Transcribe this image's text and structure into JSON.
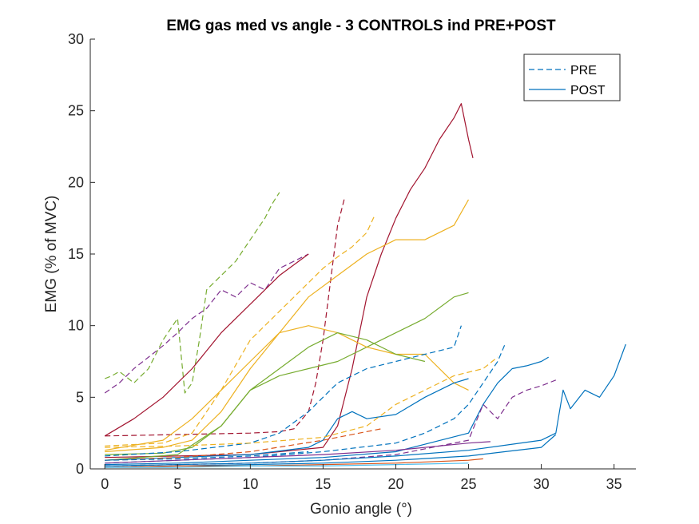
{
  "chart_data": {
    "type": "line",
    "title": "EMG gas med vs angle - 3 CONTROLS ind PRE+POST",
    "xlabel": "Gonio angle (°)",
    "ylabel": "EMG (% of MVC)",
    "xlim": [
      -1,
      36.5
    ],
    "ylim": [
      0,
      30
    ],
    "xticks": [
      "0",
      "5",
      "10",
      "15",
      "20",
      "25",
      "30",
      "35"
    ],
    "yticks": [
      "0",
      "5",
      "10",
      "15",
      "20",
      "25",
      "30"
    ],
    "grid": false,
    "legend": {
      "placement": "top-right",
      "entries": [
        {
          "label": "PRE",
          "style": "dashed",
          "color": "#0072BD"
        },
        {
          "label": "POST",
          "style": "solid",
          "color": "#0072BD"
        }
      ]
    },
    "series": [
      {
        "color": "#77AC30",
        "style": "dashed",
        "x": [
          0,
          0.5,
          1,
          1.5,
          2,
          3,
          4,
          5,
          5.5,
          6,
          6.5,
          7,
          8,
          9,
          10,
          11,
          11.5,
          12
        ],
        "y": [
          6.3,
          6.5,
          6.8,
          6.4,
          6.0,
          7.0,
          9.0,
          10.5,
          5.3,
          6.0,
          9.0,
          12.5,
          13.5,
          14.5,
          16.0,
          17.5,
          18.5,
          19.3
        ]
      },
      {
        "color": "#7E2F8E",
        "style": "dashed",
        "x": [
          0,
          1,
          2,
          3,
          4,
          5,
          6,
          7,
          8,
          9,
          10,
          11,
          12,
          13,
          14
        ],
        "y": [
          5.3,
          6.0,
          7.0,
          7.8,
          8.6,
          9.5,
          10.5,
          11.2,
          12.5,
          12.0,
          13.0,
          12.5,
          14.0,
          14.5,
          15.0
        ]
      },
      {
        "color": "#A2142F",
        "style": "solid",
        "x": [
          0,
          2,
          4,
          6,
          8,
          10,
          12,
          14
        ],
        "y": [
          2.3,
          3.5,
          5.0,
          7.0,
          9.5,
          11.5,
          13.5,
          15.0
        ]
      },
      {
        "color": "#A2142F",
        "style": "dashed",
        "x": [
          0,
          5,
          10,
          12,
          13,
          14,
          14.5,
          15,
          15.5,
          16,
          16.5
        ],
        "y": [
          2.3,
          2.4,
          2.5,
          2.6,
          2.8,
          4.0,
          6.0,
          9.0,
          13.0,
          17.0,
          19.0
        ]
      },
      {
        "color": "#A2142F",
        "style": "solid",
        "x": [
          0,
          5,
          10,
          15,
          16,
          17,
          18,
          19,
          20,
          21,
          22,
          23,
          24,
          24.5,
          25,
          25.3
        ],
        "y": [
          0.8,
          0.9,
          1.0,
          1.5,
          3.0,
          7.0,
          12.0,
          15.0,
          17.5,
          19.5,
          21.0,
          23.0,
          24.5,
          25.5,
          23.0,
          21.7
        ]
      },
      {
        "color": "#EDB120",
        "style": "dashed",
        "x": [
          0,
          4,
          6,
          8,
          10,
          12,
          14,
          15,
          16,
          17,
          18,
          18.5
        ],
        "y": [
          1.6,
          1.8,
          2.5,
          5.5,
          9.0,
          11.0,
          13.0,
          14.0,
          14.8,
          15.5,
          16.5,
          17.6
        ]
      },
      {
        "color": "#EDB120",
        "style": "solid",
        "x": [
          0,
          4,
          6,
          8,
          10,
          12,
          14,
          16,
          18,
          20,
          22,
          24,
          25
        ],
        "y": [
          1.2,
          1.5,
          2.0,
          4.0,
          7.0,
          9.5,
          12.0,
          13.5,
          15.0,
          16.0,
          16.0,
          17.0,
          18.8
        ]
      },
      {
        "color": "#77AC30",
        "style": "solid",
        "x": [
          0,
          4,
          6,
          8,
          10,
          12,
          14,
          16,
          18,
          20,
          22,
          24,
          25
        ],
        "y": [
          1.0,
          1.1,
          1.5,
          3.0,
          5.5,
          6.5,
          7.0,
          7.5,
          8.5,
          9.5,
          10.5,
          12.0,
          12.3
        ]
      },
      {
        "color": "#EDB120",
        "style": "solid",
        "x": [
          0,
          4,
          6,
          8,
          10,
          12,
          14,
          16,
          18,
          20,
          22,
          24,
          25
        ],
        "y": [
          1.3,
          2.0,
          3.5,
          5.5,
          7.5,
          9.5,
          10.0,
          9.5,
          8.5,
          8.0,
          8.0,
          6.0,
          5.5
        ]
      },
      {
        "color": "#77AC30",
        "style": "solid",
        "x": [
          0,
          5,
          8,
          10,
          12,
          14,
          16,
          18,
          20,
          22
        ],
        "y": [
          0.6,
          1.0,
          3.0,
          5.5,
          7.0,
          8.5,
          9.5,
          9.0,
          8.0,
          7.5
        ]
      },
      {
        "color": "#0072BD",
        "style": "dashed",
        "x": [
          0,
          5,
          10,
          12,
          14,
          16,
          18,
          20,
          22,
          24,
          24.5
        ],
        "y": [
          0.9,
          1.2,
          1.8,
          2.5,
          4.0,
          6.0,
          7.0,
          7.5,
          8.0,
          8.5,
          10.0
        ]
      },
      {
        "color": "#0072BD",
        "style": "solid",
        "x": [
          0,
          5,
          10,
          14,
          15,
          16,
          17,
          18,
          20,
          22,
          24,
          25
        ],
        "y": [
          0.6,
          0.8,
          1.0,
          1.5,
          2.0,
          3.5,
          4.0,
          3.5,
          3.8,
          5.0,
          6.0,
          6.3
        ]
      },
      {
        "color": "#EDB120",
        "style": "dashed",
        "x": [
          0,
          5,
          10,
          15,
          18,
          20,
          22,
          24,
          26,
          27
        ],
        "y": [
          1.5,
          1.6,
          1.8,
          2.2,
          3.0,
          4.5,
          5.5,
          6.5,
          7.0,
          7.8
        ]
      },
      {
        "color": "#0072BD",
        "style": "dashed",
        "x": [
          0,
          5,
          10,
          15,
          20,
          22,
          24,
          25,
          26,
          27,
          27.5
        ],
        "y": [
          0.4,
          0.6,
          0.8,
          1.2,
          1.8,
          2.5,
          3.5,
          4.5,
          6.0,
          7.5,
          8.7
        ]
      },
      {
        "color": "#0072BD",
        "style": "solid",
        "x": [
          0,
          5,
          10,
          15,
          20,
          25,
          26,
          27,
          28,
          29,
          30,
          30.5
        ],
        "y": [
          0.3,
          0.4,
          0.6,
          0.8,
          1.2,
          2.5,
          4.5,
          6.0,
          7.0,
          7.2,
          7.5,
          7.8
        ]
      },
      {
        "color": "#7E2F8E",
        "style": "dashed",
        "x": [
          0,
          5,
          10,
          15,
          20,
          25,
          26,
          27,
          28,
          29,
          30,
          31
        ],
        "y": [
          0.2,
          0.3,
          0.4,
          0.6,
          1.0,
          2.0,
          4.5,
          3.5,
          5.0,
          5.5,
          5.8,
          6.2
        ]
      },
      {
        "color": "#0072BD",
        "style": "solid",
        "x": [
          0,
          5,
          10,
          15,
          20,
          25,
          30,
          31,
          31.5,
          32,
          33,
          34,
          35,
          35.8
        ],
        "y": [
          0.2,
          0.3,
          0.4,
          0.6,
          0.9,
          1.3,
          2.0,
          2.5,
          5.5,
          4.2,
          5.5,
          5.0,
          6.5,
          8.7
        ]
      },
      {
        "color": "#7E2F8E",
        "style": "solid",
        "x": [
          0,
          5,
          10,
          15,
          20,
          25,
          26.5
        ],
        "y": [
          0.4,
          0.6,
          0.8,
          1.0,
          1.3,
          1.8,
          1.9
        ]
      },
      {
        "color": "#0072BD",
        "style": "solid",
        "x": [
          0,
          5,
          10,
          15,
          20,
          25,
          30,
          31
        ],
        "y": [
          0.1,
          0.2,
          0.3,
          0.4,
          0.6,
          0.9,
          1.5,
          2.4
        ]
      },
      {
        "color": "#D95319",
        "style": "solid",
        "x": [
          0,
          5,
          10,
          15,
          20,
          25,
          26
        ],
        "y": [
          0.1,
          0.2,
          0.2,
          0.3,
          0.4,
          0.6,
          0.7
        ]
      },
      {
        "color": "#4DBEEE",
        "style": "solid",
        "x": [
          0,
          5,
          10,
          15,
          20,
          25
        ],
        "y": [
          0.1,
          0.1,
          0.2,
          0.2,
          0.3,
          0.4
        ]
      },
      {
        "color": "#D95319",
        "style": "dashed",
        "x": [
          0,
          5,
          10,
          15,
          19
        ],
        "y": [
          0.6,
          0.8,
          1.2,
          2.0,
          2.8
        ]
      },
      {
        "color": "#0072BD",
        "style": "dashed",
        "x": [
          0,
          5,
          10,
          14
        ],
        "y": [
          0.6,
          0.7,
          0.9,
          1.2
        ]
      }
    ]
  }
}
